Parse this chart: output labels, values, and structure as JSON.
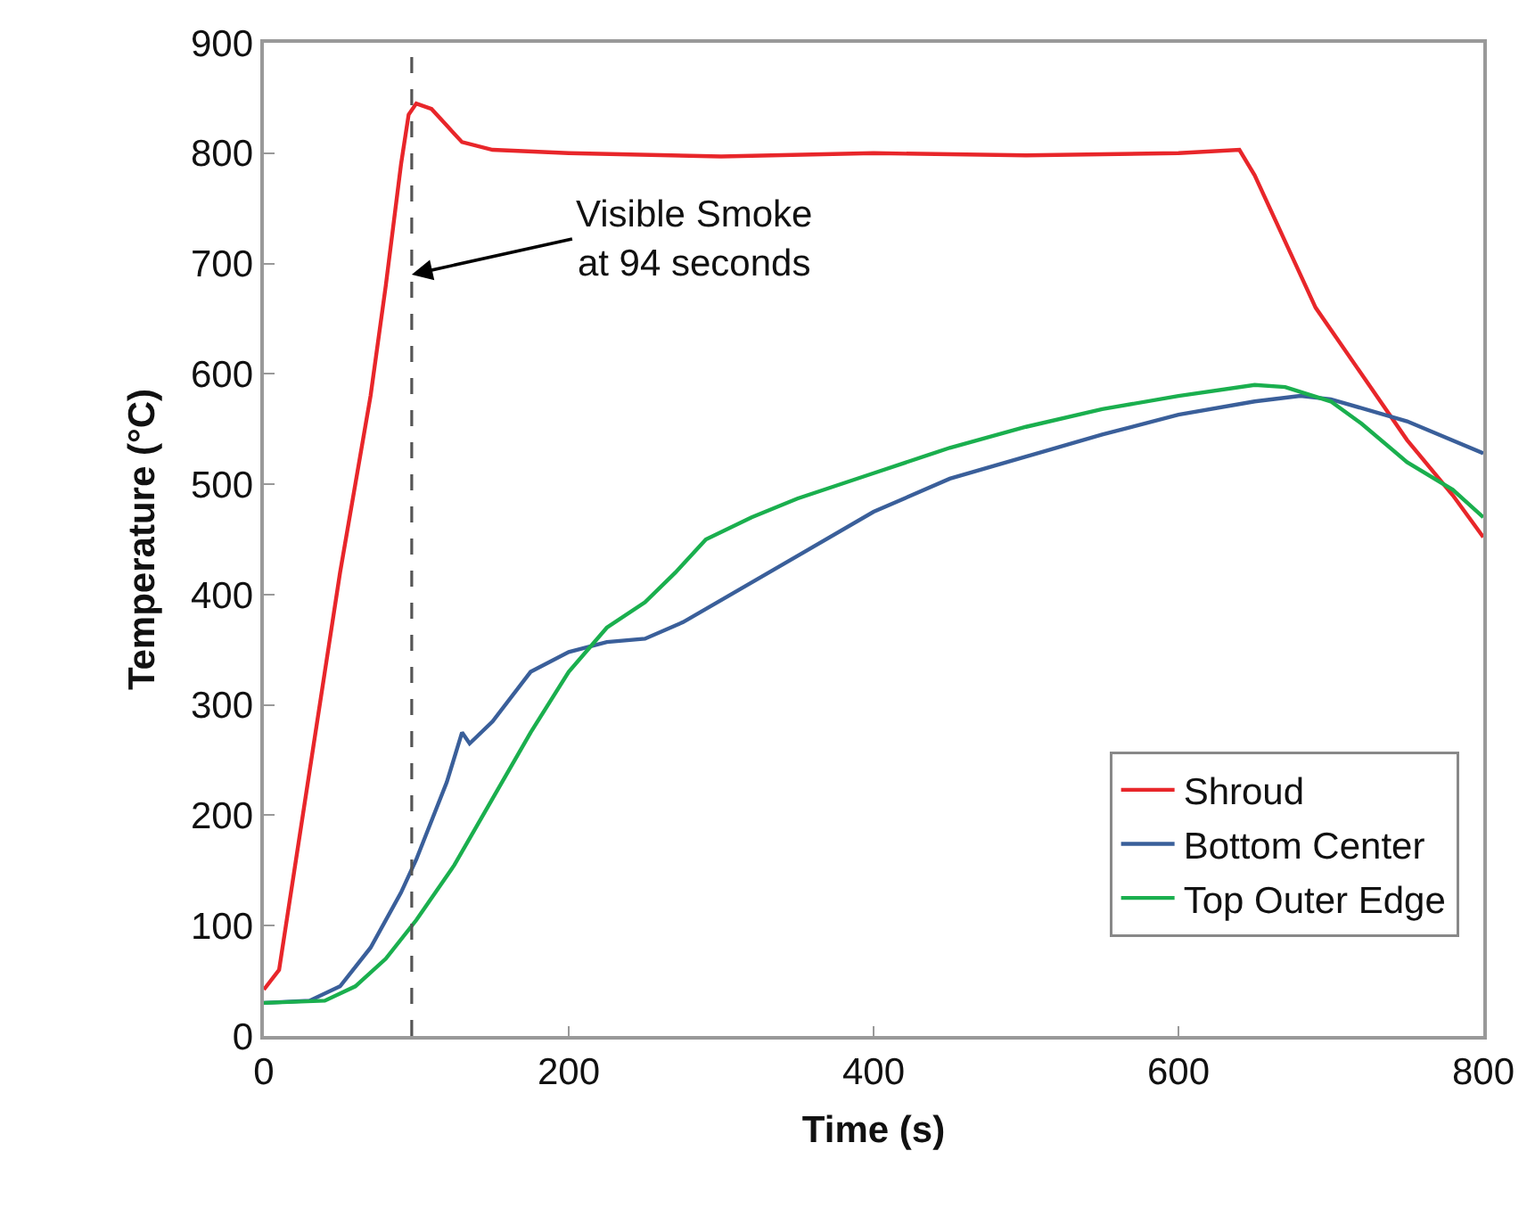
{
  "chart_data": {
    "type": "line",
    "xlabel": "Time (s)",
    "ylabel": "Temperature (°C)",
    "xlim": [
      0,
      800
    ],
    "xticks": [
      0,
      200,
      400,
      600,
      800
    ],
    "ylim": [
      0,
      900
    ],
    "yticks": [
      0,
      100,
      200,
      300,
      400,
      500,
      600,
      700,
      800,
      900
    ],
    "grid": false,
    "legend": "bottom right",
    "marker": "none",
    "line_style": "solid",
    "ref_lines": [
      {
        "axis": "x",
        "value": 97,
        "color": "#555555",
        "line_style": "dashed"
      }
    ],
    "annotations": [
      {
        "text": "Visible Smoke\nat 94 seconds",
        "x": 97,
        "y": 690
      }
    ],
    "series": [
      {
        "name": "Shroud",
        "color": "#e8262a",
        "x": [
          0,
          10,
          20,
          30,
          40,
          50,
          60,
          70,
          80,
          90,
          95,
          100,
          110,
          120,
          130,
          150,
          200,
          300,
          400,
          500,
          600,
          640,
          650,
          670,
          690,
          720,
          750,
          780,
          800
        ],
        "values": [
          42,
          60,
          150,
          240,
          330,
          420,
          500,
          580,
          680,
          790,
          835,
          845,
          840,
          825,
          810,
          803,
          800,
          797,
          800,
          798,
          800,
          803,
          780,
          720,
          660,
          600,
          540,
          490,
          452
        ]
      },
      {
        "name": "Bottom Center",
        "color": "#3a5f9a",
        "x": [
          0,
          30,
          50,
          70,
          90,
          100,
          120,
          130,
          135,
          150,
          175,
          200,
          225,
          250,
          275,
          300,
          350,
          400,
          450,
          500,
          550,
          600,
          650,
          680,
          700,
          750,
          800
        ],
        "values": [
          30,
          32,
          45,
          80,
          130,
          160,
          230,
          275,
          265,
          285,
          330,
          348,
          357,
          360,
          375,
          395,
          435,
          475,
          505,
          525,
          545,
          563,
          575,
          580,
          577,
          557,
          528
        ]
      },
      {
        "name": "Top Outer Edge",
        "color": "#1aaf4e",
        "x": [
          0,
          40,
          60,
          80,
          100,
          125,
          150,
          175,
          200,
          225,
          250,
          270,
          290,
          320,
          350,
          400,
          450,
          500,
          550,
          600,
          650,
          670,
          700,
          720,
          750,
          780,
          800
        ],
        "values": [
          30,
          32,
          45,
          70,
          105,
          155,
          215,
          275,
          330,
          370,
          393,
          420,
          450,
          470,
          487,
          510,
          533,
          552,
          568,
          580,
          590,
          588,
          575,
          555,
          520,
          495,
          470
        ]
      }
    ]
  }
}
